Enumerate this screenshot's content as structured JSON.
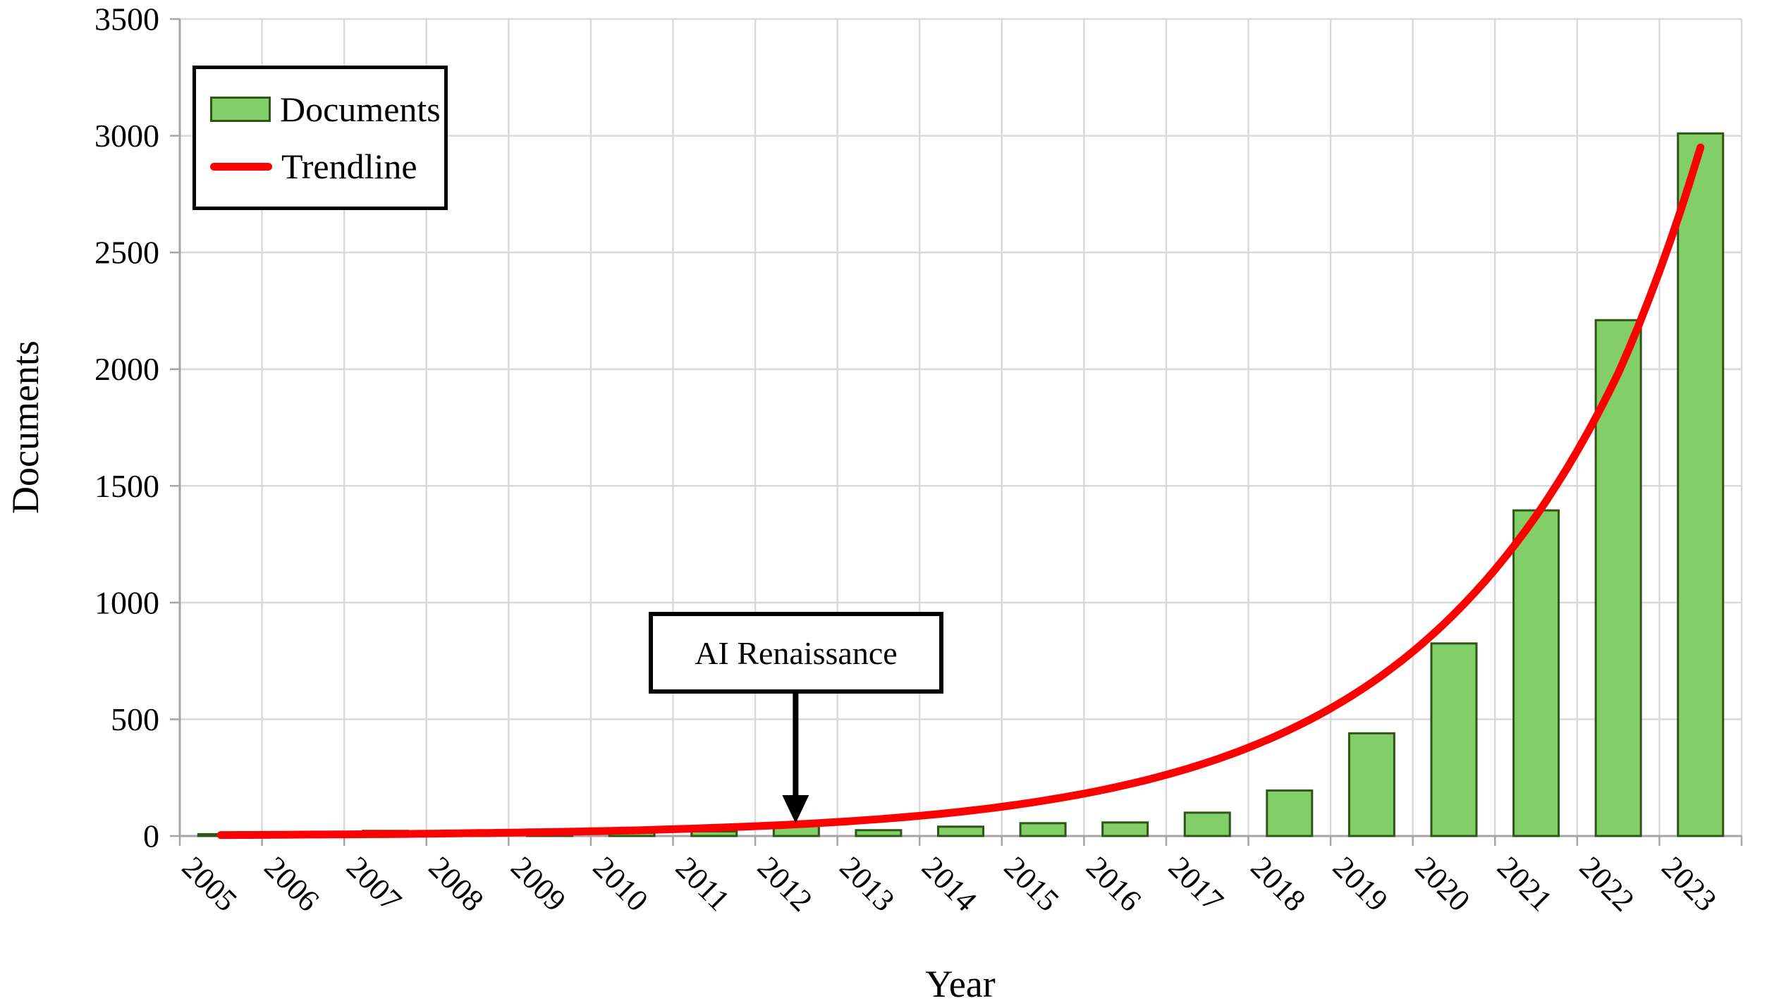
{
  "colors": {
    "background": "#FFFFFF",
    "bar_fill": "#82CE69",
    "bar_border": "#2F5519",
    "trend": "#FF0000",
    "grid": "#D9D9D9",
    "axis": "#A6A6A6",
    "text": "#000000",
    "annotation_border": "#000000"
  },
  "chart_data": {
    "type": "bar",
    "title": "",
    "xlabel": "Year",
    "ylabel": "Documents",
    "categories": [
      "2005",
      "2006",
      "2007",
      "2008",
      "2009",
      "2010",
      "2011",
      "2012",
      "2013",
      "2014",
      "2015",
      "2016",
      "2017",
      "2018",
      "2019",
      "2020",
      "2021",
      "2022",
      "2023"
    ],
    "series": [
      {
        "name": "Documents",
        "type": "bar",
        "values": [
          8,
          12,
          22,
          18,
          25,
          14,
          20,
          48,
          25,
          40,
          55,
          58,
          100,
          195,
          440,
          825,
          1395,
          2210,
          3010
        ]
      },
      {
        "name": "Trendline",
        "type": "line",
        "values": [
          4,
          6,
          8,
          12,
          17,
          24,
          35,
          50,
          72,
          104,
          151,
          218,
          315,
          455,
          657,
          950,
          1372,
          1983,
          2950
        ]
      }
    ],
    "ylim": [
      0,
      3500
    ],
    "ytick_step": 500,
    "yticks": [
      "0",
      "500",
      "1000",
      "1500",
      "2000",
      "2500",
      "3000",
      "3500"
    ],
    "grid": true,
    "legend_position": "top-left",
    "annotation": {
      "text": "AI Renaissance",
      "target_category": "2012"
    }
  },
  "legend": {
    "items": [
      {
        "label": "Documents",
        "swatch": "bar"
      },
      {
        "label": "Trendline",
        "swatch": "line"
      }
    ]
  }
}
